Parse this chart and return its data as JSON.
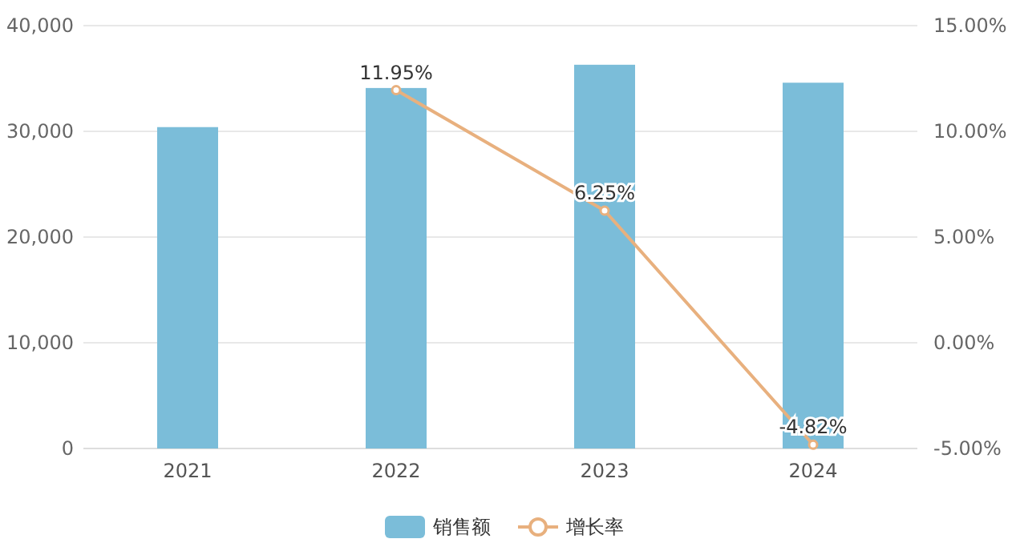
{
  "chart_data": {
    "type": "bar",
    "categories": [
      "2021",
      "2022",
      "2023",
      "2024"
    ],
    "series": [
      {
        "name": "销售额",
        "color": "#7bbdd9",
        "values": [
          30400,
          34100,
          36300,
          34600
        ]
      },
      {
        "name": "增长率",
        "type": "line",
        "axis": "y2",
        "color": "#e8b07e",
        "marker": "circle",
        "values": [
          null,
          11.95,
          6.25,
          -4.82
        ],
        "value_labels": [
          null,
          "11.95%",
          "6.25%",
          "-4.82%"
        ]
      }
    ],
    "ylim": [
      0,
      40000
    ],
    "yticks": [
      {
        "value": 0,
        "label": "0"
      },
      {
        "value": 10000,
        "label": "10,000"
      },
      {
        "value": 20000,
        "label": "20,000"
      },
      {
        "value": 30000,
        "label": "30,000"
      },
      {
        "value": 40000,
        "label": "40,000"
      }
    ],
    "y2lim": [
      -5,
      15
    ],
    "y2ticks": [
      {
        "value": -5,
        "label": "-5.00%"
      },
      {
        "value": 0,
        "label": "0.00%"
      },
      {
        "value": 5,
        "label": "5.00%"
      },
      {
        "value": 10,
        "label": "10.00%"
      },
      {
        "value": 15,
        "label": "15.00%"
      }
    ],
    "grid": "y",
    "legend": "bottom"
  }
}
